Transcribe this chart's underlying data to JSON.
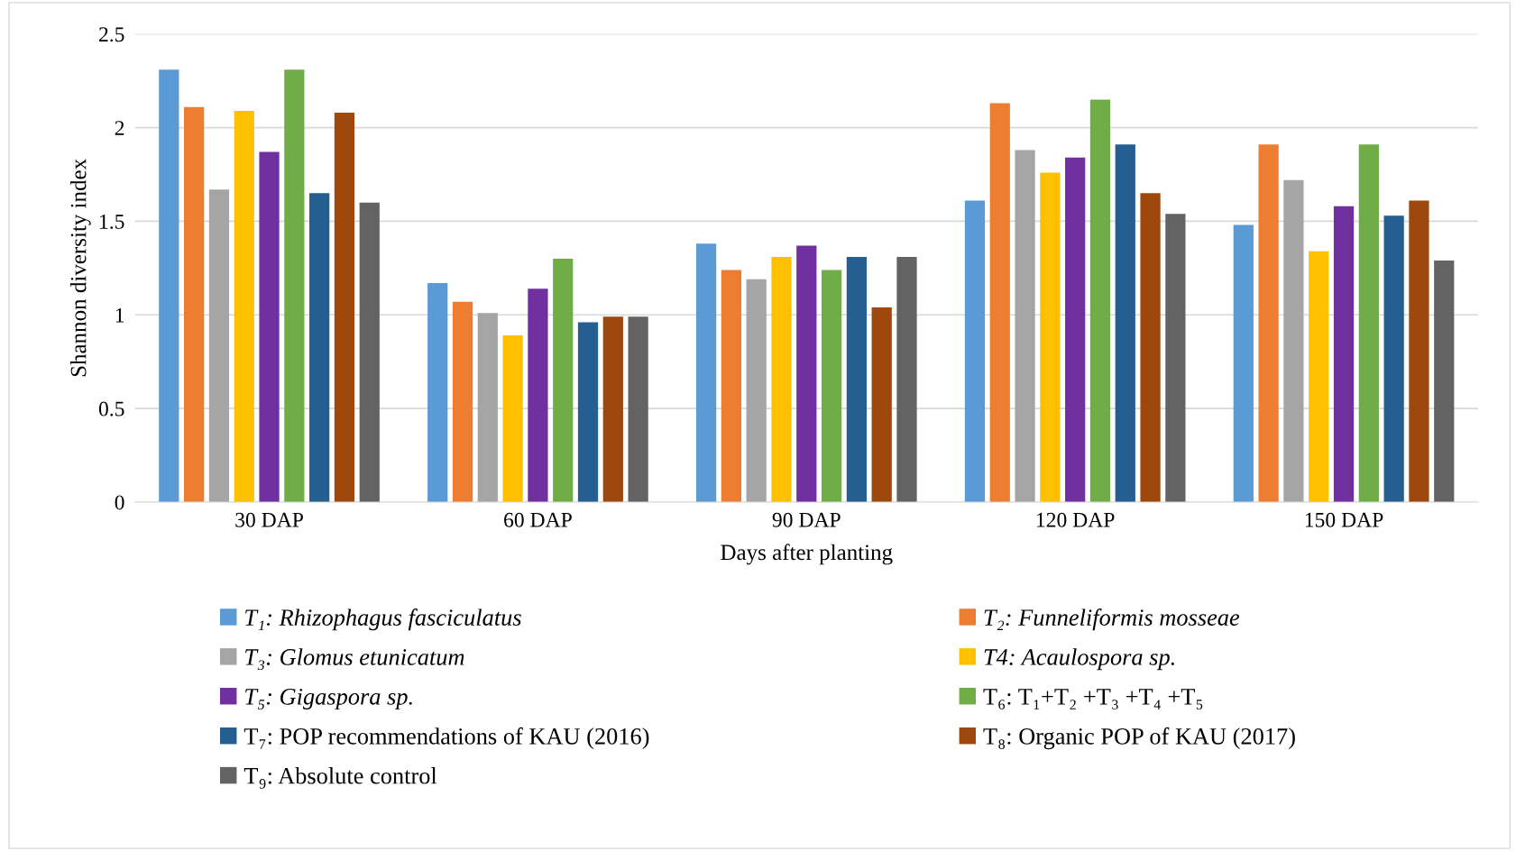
{
  "chart_data": {
    "type": "bar",
    "xlabel": "Days after planting",
    "ylabel": "Shannon diversity index",
    "categories": [
      "30 DAP",
      "60 DAP",
      "90 DAP",
      "120 DAP",
      "150 DAP"
    ],
    "ylim": [
      0,
      2.5
    ],
    "yticks": [
      0,
      0.5,
      1,
      1.5,
      2,
      2.5
    ],
    "grid": "y",
    "legend": "bottom",
    "series": [
      {
        "name": "T₁: Rhizophagus fasciculatus",
        "color": "#5b9bd5",
        "values": [
          2.31,
          1.17,
          1.38,
          1.61,
          1.48
        ]
      },
      {
        "name": "T₂: Funneliformis mosseae",
        "color": "#ed7d31",
        "values": [
          2.11,
          1.07,
          1.24,
          2.13,
          1.91
        ]
      },
      {
        "name": "T₃: Glomus etunicatum",
        "color": "#a5a5a5",
        "values": [
          1.67,
          1.01,
          1.19,
          1.88,
          1.72
        ]
      },
      {
        "name": "T4: Acaulospora sp.",
        "color": "#ffc000",
        "values": [
          2.09,
          0.89,
          1.31,
          1.76,
          1.34
        ]
      },
      {
        "name": "T₅: Gigaspora sp.",
        "color": "#7030a0",
        "values": [
          1.87,
          1.14,
          1.37,
          1.84,
          1.58
        ]
      },
      {
        "name": "T₆: T₁+T₂ +T₃ +T₄ +T₅",
        "color": "#70ad47",
        "values": [
          2.31,
          1.3,
          1.24,
          2.15,
          1.91
        ]
      },
      {
        "name": "T₇: POP recommendations of KAU (2016)",
        "color": "#255e91",
        "values": [
          1.65,
          0.96,
          1.31,
          1.91,
          1.53
        ]
      },
      {
        "name": "T₈: Organic POP of KAU (2017)",
        "color": "#9e480e",
        "values": [
          2.08,
          0.99,
          1.04,
          1.65,
          1.61
        ]
      },
      {
        "name": "T₉: Absolute control",
        "color": "#636363",
        "values": [
          1.6,
          0.99,
          1.31,
          1.54,
          1.29
        ]
      }
    ]
  }
}
